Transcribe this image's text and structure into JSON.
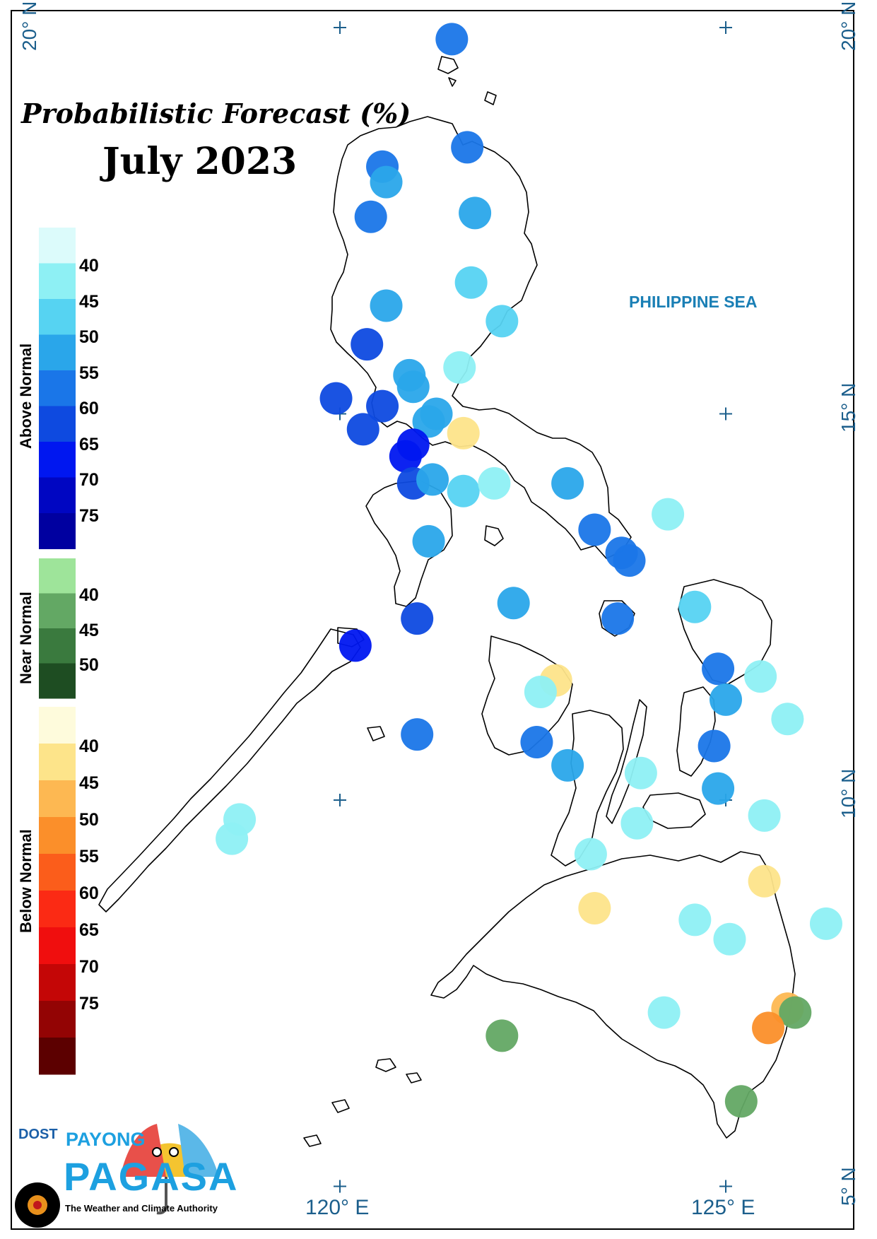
{
  "title": "Probabilistic Forecast (%)",
  "month": "July 2023",
  "sea_label": "PHILIPPINE SEA",
  "lat_labels": [
    "20° N",
    "15° N",
    "10° N",
    "5° N"
  ],
  "lon_labels": [
    "120° E",
    "125° E"
  ],
  "legend": {
    "groups": [
      {
        "label": "Above Normal",
        "ticks": [
          "40",
          "45",
          "50",
          "55",
          "60",
          "65",
          "70",
          "75"
        ],
        "colors": [
          "#dcfbfb",
          "#8ef0f4",
          "#56d3f2",
          "#2aa6ea",
          "#1a76e8",
          "#0e4ae0",
          "#0017f0",
          "#0006c2",
          "#0000a0"
        ]
      },
      {
        "label": "Near Normal",
        "ticks": [
          "40",
          "45",
          "50"
        ],
        "colors": [
          "#9ee49a",
          "#63a864",
          "#3a7a3e",
          "#1e4d22"
        ]
      },
      {
        "label": "Below Normal",
        "ticks": [
          "40",
          "45",
          "50",
          "55",
          "60",
          "65",
          "70",
          "75"
        ],
        "colors": [
          "#fefbdc",
          "#fde48a",
          "#fdb852",
          "#fb8f2a",
          "#fb5d1b",
          "#fb2a14",
          "#f00e0e",
          "#c40606",
          "#930404",
          "#5c0000"
        ]
      }
    ]
  },
  "stations": [
    {
      "lon": 121.45,
      "lat": 19.85,
      "category": "above",
      "pct": 55
    },
    {
      "lon": 121.65,
      "lat": 18.45,
      "category": "above",
      "pct": 55
    },
    {
      "lon": 120.55,
      "lat": 18.2,
      "category": "above",
      "pct": 55
    },
    {
      "lon": 120.6,
      "lat": 18.0,
      "category": "above",
      "pct": 50
    },
    {
      "lon": 120.4,
      "lat": 17.55,
      "category": "above",
      "pct": 55
    },
    {
      "lon": 121.75,
      "lat": 17.6,
      "category": "above",
      "pct": 50
    },
    {
      "lon": 121.7,
      "lat": 16.7,
      "category": "above",
      "pct": 45
    },
    {
      "lon": 120.6,
      "lat": 16.4,
      "category": "above",
      "pct": 50
    },
    {
      "lon": 122.1,
      "lat": 16.2,
      "category": "above",
      "pct": 45
    },
    {
      "lon": 120.35,
      "lat": 15.9,
      "category": "above",
      "pct": 60
    },
    {
      "lon": 120.9,
      "lat": 15.5,
      "category": "above",
      "pct": 50
    },
    {
      "lon": 121.55,
      "lat": 15.6,
      "category": "above",
      "pct": 40
    },
    {
      "lon": 120.95,
      "lat": 15.35,
      "category": "above",
      "pct": 50
    },
    {
      "lon": 119.95,
      "lat": 15.2,
      "category": "above",
      "pct": 60
    },
    {
      "lon": 120.55,
      "lat": 15.1,
      "category": "above",
      "pct": 60
    },
    {
      "lon": 121.25,
      "lat": 15.0,
      "category": "above",
      "pct": 50
    },
    {
      "lon": 121.15,
      "lat": 14.9,
      "category": "above",
      "pct": 50
    },
    {
      "lon": 120.3,
      "lat": 14.8,
      "category": "above",
      "pct": 60
    },
    {
      "lon": 121.6,
      "lat": 14.75,
      "category": "below",
      "pct": 40
    },
    {
      "lon": 120.95,
      "lat": 14.6,
      "category": "above",
      "pct": 65
    },
    {
      "lon": 120.85,
      "lat": 14.45,
      "category": "above",
      "pct": 65
    },
    {
      "lon": 120.95,
      "lat": 14.1,
      "category": "above",
      "pct": 60
    },
    {
      "lon": 121.2,
      "lat": 14.15,
      "category": "above",
      "pct": 50
    },
    {
      "lon": 121.6,
      "lat": 14.0,
      "category": "above",
      "pct": 45
    },
    {
      "lon": 122.0,
      "lat": 14.1,
      "category": "above",
      "pct": 40
    },
    {
      "lon": 122.95,
      "lat": 14.1,
      "category": "above",
      "pct": 50
    },
    {
      "lon": 124.25,
      "lat": 13.7,
      "category": "above",
      "pct": 40
    },
    {
      "lon": 121.15,
      "lat": 13.35,
      "category": "above",
      "pct": 50
    },
    {
      "lon": 123.3,
      "lat": 13.5,
      "category": "above",
      "pct": 55
    },
    {
      "lon": 123.65,
      "lat": 13.2,
      "category": "above",
      "pct": 55
    },
    {
      "lon": 123.75,
      "lat": 13.1,
      "category": "above",
      "pct": 55
    },
    {
      "lon": 122.25,
      "lat": 12.55,
      "category": "above",
      "pct": 50
    },
    {
      "lon": 124.6,
      "lat": 12.5,
      "category": "above",
      "pct": 45
    },
    {
      "lon": 121.0,
      "lat": 12.35,
      "category": "above",
      "pct": 60
    },
    {
      "lon": 123.6,
      "lat": 12.35,
      "category": "above",
      "pct": 55
    },
    {
      "lon": 120.2,
      "lat": 12.0,
      "category": "above",
      "pct": 65
    },
    {
      "lon": 124.9,
      "lat": 11.7,
      "category": "above",
      "pct": 55
    },
    {
      "lon": 125.45,
      "lat": 11.6,
      "category": "above",
      "pct": 40
    },
    {
      "lon": 122.8,
      "lat": 11.55,
      "category": "below",
      "pct": 40
    },
    {
      "lon": 122.6,
      "lat": 11.4,
      "category": "above",
      "pct": 40
    },
    {
      "lon": 125.0,
      "lat": 11.3,
      "category": "above",
      "pct": 50
    },
    {
      "lon": 125.8,
      "lat": 11.05,
      "category": "above",
      "pct": 40
    },
    {
      "lon": 121.0,
      "lat": 10.85,
      "category": "above",
      "pct": 55
    },
    {
      "lon": 122.55,
      "lat": 10.75,
      "category": "above",
      "pct": 55
    },
    {
      "lon": 124.85,
      "lat": 10.7,
      "category": "above",
      "pct": 55
    },
    {
      "lon": 122.95,
      "lat": 10.45,
      "category": "above",
      "pct": 50
    },
    {
      "lon": 123.9,
      "lat": 10.35,
      "category": "above",
      "pct": 40
    },
    {
      "lon": 124.9,
      "lat": 10.15,
      "category": "above",
      "pct": 50
    },
    {
      "lon": 118.7,
      "lat": 9.75,
      "category": "above",
      "pct": 40
    },
    {
      "lon": 118.6,
      "lat": 9.5,
      "category": "above",
      "pct": 40
    },
    {
      "lon": 123.85,
      "lat": 9.7,
      "category": "above",
      "pct": 40
    },
    {
      "lon": 125.5,
      "lat": 9.8,
      "category": "above",
      "pct": 40
    },
    {
      "lon": 123.25,
      "lat": 9.3,
      "category": "above",
      "pct": 40
    },
    {
      "lon": 125.5,
      "lat": 8.95,
      "category": "below",
      "pct": 40
    },
    {
      "lon": 123.3,
      "lat": 8.6,
      "category": "below",
      "pct": 40
    },
    {
      "lon": 124.6,
      "lat": 8.45,
      "category": "above",
      "pct": 40
    },
    {
      "lon": 126.3,
      "lat": 8.4,
      "category": "above",
      "pct": 40
    },
    {
      "lon": 125.05,
      "lat": 8.2,
      "category": "above",
      "pct": 40
    },
    {
      "lon": 124.2,
      "lat": 7.25,
      "category": "above",
      "pct": 40
    },
    {
      "lon": 125.8,
      "lat": 7.3,
      "category": "below",
      "pct": 45
    },
    {
      "lon": 125.9,
      "lat": 7.25,
      "category": "near",
      "pct": 40
    },
    {
      "lon": 125.55,
      "lat": 7.05,
      "category": "below",
      "pct": 50
    },
    {
      "lon": 122.1,
      "lat": 6.95,
      "category": "near",
      "pct": 40
    },
    {
      "lon": 125.2,
      "lat": 6.1,
      "category": "near",
      "pct": 40
    }
  ]
}
